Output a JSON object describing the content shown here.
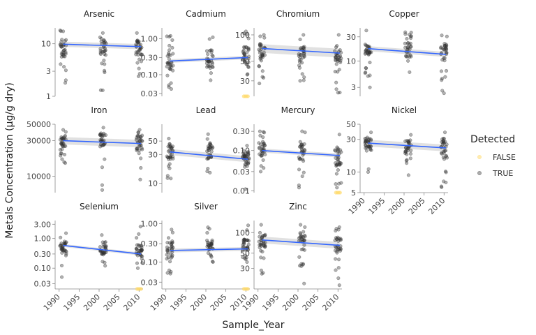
{
  "chart_data": {
    "type": "scatter",
    "layout": "faceted-4x3",
    "xlabel": "Sample_Year",
    "ylabel": "Metals Concentration (µg/g dry)",
    "x_tick_labels": [
      "1990",
      "1995",
      "2000",
      "2005",
      "2010"
    ],
    "xlim": [
      1989,
      2011
    ],
    "y_scale": "log",
    "trend": "linear fit with confidence band",
    "colors": {
      "detected_true": "#333333",
      "detected_false": "#FFD966",
      "trend_line": "#3366FF",
      "band": "#C8C8C8"
    },
    "legend": {
      "title": "Detected",
      "position": "right",
      "entries": [
        {
          "label": "FALSE",
          "color": "#FFD966"
        },
        {
          "label": "TRUE",
          "color": "#333333"
        }
      ]
    },
    "facets": [
      {
        "name": "Arsenic",
        "ylim": [
          1,
          20
        ],
        "y_ticks": [
          1,
          3,
          10
        ],
        "y_tick_labels": [
          "1",
          "3",
          "10"
        ],
        "groups": [
          {
            "x": 1991,
            "min": 1.8,
            "q1": 5.5,
            "median": 9,
            "q3": 12,
            "max": 18,
            "n": 34
          },
          {
            "x": 2001,
            "min": 1.3,
            "q1": 6,
            "median": 9,
            "q3": 12,
            "max": 16,
            "n": 32
          },
          {
            "x": 2010,
            "min": 2.4,
            "q1": 6,
            "median": 9,
            "q3": 12,
            "max": 16,
            "n": 34
          }
        ],
        "nondetect": [],
        "trend": [
          9.8,
          8.8
        ]
      },
      {
        "name": "Cadmium",
        "ylim": [
          0.025,
          2
        ],
        "y_ticks": [
          0.03,
          0.1,
          0.3,
          1
        ],
        "y_tick_labels": [
          "0.03",
          "0.10",
          "0.30",
          "1.00"
        ],
        "groups": [
          {
            "x": 1991,
            "min": 0.04,
            "q1": 0.12,
            "median": 0.25,
            "q3": 0.45,
            "max": 1.2,
            "n": 34
          },
          {
            "x": 2001,
            "min": 0.07,
            "q1": 0.15,
            "median": 0.3,
            "q3": 0.5,
            "max": 1.1,
            "n": 32
          },
          {
            "x": 2010,
            "min": 0.1,
            "q1": 0.2,
            "median": 0.35,
            "q3": 0.7,
            "max": 1.6,
            "n": 34
          }
        ],
        "nondetect": [
          [
            2010,
            0.025
          ]
        ],
        "trend": [
          0.24,
          0.3
        ]
      },
      {
        "name": "Chromium",
        "ylim": [
          20,
          120
        ],
        "y_ticks": [
          30,
          50,
          100
        ],
        "y_tick_labels": [
          "30",
          "50",
          "100"
        ],
        "groups": [
          {
            "x": 1991,
            "min": 28,
            "q1": 50,
            "median": 65,
            "q3": 80,
            "max": 100,
            "n": 34
          },
          {
            "x": 2001,
            "min": 30,
            "q1": 48,
            "median": 60,
            "q3": 75,
            "max": 100,
            "n": 32
          },
          {
            "x": 2010,
            "min": 22,
            "q1": 45,
            "median": 58,
            "q3": 75,
            "max": 100,
            "n": 34
          }
        ],
        "nondetect": [],
        "trend": [
          70,
          62
        ]
      },
      {
        "name": "Copper",
        "ylim": [
          2,
          45
        ],
        "y_ticks": [
          3,
          10,
          30
        ],
        "y_tick_labels": [
          "3",
          "10",
          "30"
        ],
        "groups": [
          {
            "x": 1991,
            "min": 3,
            "q1": 12,
            "median": 17,
            "q3": 22,
            "max": 40,
            "n": 34
          },
          {
            "x": 2001,
            "min": 6,
            "q1": 12,
            "median": 17,
            "q3": 24,
            "max": 37,
            "n": 32
          },
          {
            "x": 2010,
            "min": 2.3,
            "q1": 10,
            "median": 15,
            "q3": 22,
            "max": 32,
            "n": 34
          }
        ],
        "nondetect": [],
        "trend": [
          17.5,
          13.5
        ]
      },
      {
        "name": "Iron",
        "ylim": [
          6000,
          50000
        ],
        "y_ticks": [
          10000,
          30000,
          50000
        ],
        "y_tick_labels": [
          "10000",
          "30000",
          "50000"
        ],
        "groups": [
          {
            "x": 1991,
            "min": 15000,
            "q1": 25000,
            "median": 30000,
            "q3": 35000,
            "max": 42000,
            "n": 34
          },
          {
            "x": 2001,
            "min": 6500,
            "q1": 25000,
            "median": 32000,
            "q3": 38000,
            "max": 45000,
            "n": 32
          },
          {
            "x": 2010,
            "min": 9000,
            "q1": 22000,
            "median": 30000,
            "q3": 36000,
            "max": 42000,
            "n": 34
          }
        ],
        "nondetect": [],
        "trend": [
          30000,
          27500
        ]
      },
      {
        "name": "Lead",
        "ylim": [
          7,
          95
        ],
        "y_ticks": [
          10,
          30,
          50
        ],
        "y_tick_labels": [
          "10",
          "30",
          "50"
        ],
        "groups": [
          {
            "x": 1991,
            "min": 12,
            "q1": 25,
            "median": 33,
            "q3": 42,
            "max": 55,
            "n": 34
          },
          {
            "x": 2001,
            "min": 15,
            "q1": 25,
            "median": 32,
            "q3": 45,
            "max": 65,
            "n": 32
          },
          {
            "x": 2010,
            "min": 8,
            "q1": 20,
            "median": 26,
            "q3": 33,
            "max": 42,
            "n": 34
          }
        ],
        "nondetect": [],
        "trend": [
          33,
          25
        ]
      },
      {
        "name": "Mercury",
        "ylim": [
          0.009,
          0.45
        ],
        "y_ticks": [
          0.01,
          0.03,
          0.1,
          0.3
        ],
        "y_tick_labels": [
          "0.01",
          "0.03",
          "0.10",
          "0.30"
        ],
        "groups": [
          {
            "x": 1991,
            "min": 0.03,
            "q1": 0.07,
            "median": 0.1,
            "q3": 0.17,
            "max": 0.3,
            "n": 34
          },
          {
            "x": 2001,
            "min": 0.012,
            "q1": 0.05,
            "median": 0.09,
            "q3": 0.15,
            "max": 0.3,
            "n": 32
          },
          {
            "x": 2010,
            "min": 0.012,
            "q1": 0.04,
            "median": 0.07,
            "q3": 0.12,
            "max": 0.25,
            "n": 34
          }
        ],
        "nondetect": [
          [
            2010,
            0.009
          ]
        ],
        "trend": [
          0.1,
          0.075
        ]
      },
      {
        "name": "Nickel",
        "ylim": [
          5,
          50
        ],
        "y_ticks": [
          5,
          10,
          30,
          50
        ],
        "y_tick_labels": [
          "5",
          "10",
          "30",
          "50"
        ],
        "groups": [
          {
            "x": 1991,
            "min": 10,
            "q1": 20,
            "median": 27,
            "q3": 32,
            "max": 38,
            "n": 34
          },
          {
            "x": 2001,
            "min": 9,
            "q1": 18,
            "median": 25,
            "q3": 30,
            "max": 35,
            "n": 32
          },
          {
            "x": 2010,
            "min": 6,
            "q1": 16,
            "median": 23,
            "q3": 30,
            "max": 38,
            "n": 34
          }
        ],
        "nondetect": [],
        "trend": [
          26.5,
          22.5
        ]
      },
      {
        "name": "Selenium",
        "ylim": [
          0.02,
          4
        ],
        "y_ticks": [
          0.03,
          0.1,
          0.3,
          1,
          3
        ],
        "y_tick_labels": [
          "0.03",
          "0.10",
          "0.30",
          "1.00",
          "3.00"
        ],
        "groups": [
          {
            "x": 1991,
            "min": 0.05,
            "q1": 0.3,
            "median": 0.55,
            "q3": 0.8,
            "max": 1.5,
            "n": 34
          },
          {
            "x": 2001,
            "min": 0.12,
            "q1": 0.25,
            "median": 0.45,
            "q3": 0.8,
            "max": 1.3,
            "n": 32
          },
          {
            "x": 2010,
            "min": 0.1,
            "q1": 0.2,
            "median": 0.35,
            "q3": 0.7,
            "max": 2.5,
            "n": 34
          }
        ],
        "nondetect": [
          [
            2010,
            0.02
          ]
        ],
        "trend": [
          0.58,
          0.3
        ]
      },
      {
        "name": "Silver",
        "ylim": [
          0.02,
          1.2
        ],
        "y_ticks": [
          0.03,
          0.1,
          0.3,
          1
        ],
        "y_tick_labels": [
          "0.03",
          "0.10",
          "0.30",
          "1.00"
        ],
        "groups": [
          {
            "x": 1991,
            "min": 0.05,
            "q1": 0.12,
            "median": 0.2,
            "q3": 0.35,
            "max": 0.7,
            "n": 34
          },
          {
            "x": 2001,
            "min": 0.1,
            "q1": 0.2,
            "median": 0.25,
            "q3": 0.35,
            "max": 0.8,
            "n": 32
          },
          {
            "x": 2010,
            "min": 0.1,
            "q1": 0.2,
            "median": 0.25,
            "q3": 0.4,
            "max": 0.9,
            "n": 34
          }
        ],
        "nondetect": [
          [
            2010,
            0.02
          ]
        ],
        "trend": [
          0.2,
          0.22
        ]
      },
      {
        "name": "Zinc",
        "ylim": [
          15,
          150
        ],
        "y_ticks": [
          30,
          50,
          100
        ],
        "y_tick_labels": [
          "30",
          "50",
          "100"
        ],
        "groups": [
          {
            "x": 1991,
            "min": 25,
            "q1": 60,
            "median": 80,
            "q3": 100,
            "max": 130,
            "n": 34
          },
          {
            "x": 2001,
            "min": 18,
            "q1": 55,
            "median": 75,
            "q3": 100,
            "max": 130,
            "n": 32
          },
          {
            "x": 2010,
            "min": 17,
            "q1": 50,
            "median": 65,
            "q3": 90,
            "max": 120,
            "n": 34
          }
        ],
        "nondetect": [],
        "trend": [
          78,
          65
        ]
      }
    ]
  }
}
